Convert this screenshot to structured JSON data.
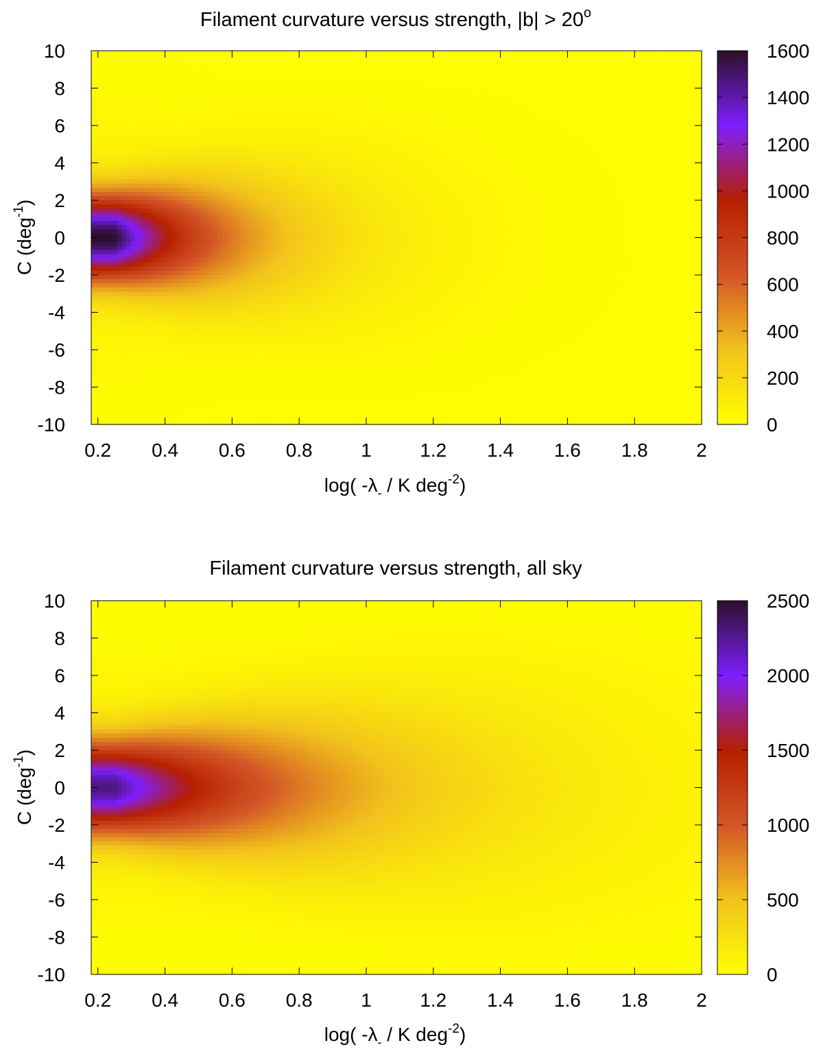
{
  "chart_data": [
    {
      "type": "heatmap",
      "title": "Filament curvature versus strength, |b| > 20",
      "title_superscript": "o",
      "xlabel": "log( -λ",
      "xlabel_sub": "-",
      "xlabel_tail": " / K deg",
      "xlabel_sup": "-2",
      "xlabel_close": ")",
      "ylabel": "C (deg",
      "ylabel_sup": "-1",
      "ylabel_close": ")",
      "xlim": [
        0.18,
        2.0
      ],
      "ylim": [
        -10,
        10
      ],
      "xticks": [
        0.2,
        0.4,
        0.6,
        0.8,
        1.0,
        1.2,
        1.4,
        1.6,
        1.8,
        2.0
      ],
      "xtick_labels": [
        "0.2",
        "0.4",
        "0.6",
        "0.8",
        "1",
        "1.2",
        "1.4",
        "1.6",
        "1.8",
        "2"
      ],
      "yticks": [
        10,
        8,
        6,
        4,
        2,
        0,
        -2,
        -4,
        -6,
        -8,
        -10
      ],
      "ytick_labels": [
        "10",
        "8",
        "6",
        "4",
        "2",
        "0",
        "-2",
        "-4",
        "-6",
        "-8",
        "-10"
      ],
      "colorbar": {
        "range": [
          0,
          1600
        ],
        "ticks": [
          1600,
          1400,
          1200,
          1000,
          800,
          600,
          400,
          200,
          0
        ],
        "tick_labels": [
          "1600",
          "1400",
          "1200",
          "1000",
          "800",
          "600",
          "400",
          "200",
          "0"
        ]
      },
      "peak": {
        "x": 0.25,
        "y": 0.0,
        "value": 1600
      },
      "ridge": {
        "sigma_y_at_start": 1.6,
        "sigma_y_growth": 1.7,
        "decay_length": 0.32
      },
      "colormap": [
        "#ffff00",
        "#f2c31c",
        "#d35527",
        "#b61f00",
        "#7f1fff",
        "#2a1028"
      ]
    },
    {
      "type": "heatmap",
      "title": "Filament curvature versus strength, all sky",
      "xlabel": "log( -λ",
      "xlabel_sub": "-",
      "xlabel_tail": " / K deg",
      "xlabel_sup": "-2",
      "xlabel_close": ")",
      "ylabel": "C (deg",
      "ylabel_sup": "-1",
      "ylabel_close": ")",
      "xlim": [
        0.18,
        2.0
      ],
      "ylim": [
        -10,
        10
      ],
      "xticks": [
        0.2,
        0.4,
        0.6,
        0.8,
        1.0,
        1.2,
        1.4,
        1.6,
        1.8,
        2.0
      ],
      "xtick_labels": [
        "0.2",
        "0.4",
        "0.6",
        "0.8",
        "1",
        "1.2",
        "1.4",
        "1.6",
        "1.8",
        "2"
      ],
      "yticks": [
        10,
        8,
        6,
        4,
        2,
        0,
        -2,
        -4,
        -6,
        -8,
        -10
      ],
      "ytick_labels": [
        "10",
        "8",
        "6",
        "4",
        "2",
        "0",
        "-2",
        "-4",
        "-6",
        "-8",
        "-10"
      ],
      "colorbar": {
        "range": [
          0,
          2500
        ],
        "ticks": [
          2500,
          2000,
          1500,
          1000,
          500,
          0
        ],
        "tick_labels": [
          "2500",
          "2000",
          "1500",
          "1000",
          "500",
          "0"
        ]
      },
      "peak": {
        "x": 0.25,
        "y": 0.0,
        "value": 2300
      },
      "ridge": {
        "sigma_y_at_start": 1.7,
        "sigma_y_growth": 1.4,
        "decay_length": 0.55
      },
      "colormap": [
        "#ffff00",
        "#f2c31c",
        "#d35527",
        "#b61f00",
        "#7f1fff",
        "#2a1028"
      ]
    }
  ]
}
